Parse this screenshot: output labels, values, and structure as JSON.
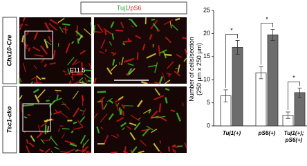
{
  "figure": {
    "header": {
      "green": "Tuj1",
      "red": "/pS6"
    },
    "rows": [
      "Chx10-Cre",
      "Tsc1-cko"
    ],
    "stage": "E11.5"
  },
  "chart_data": {
    "type": "bar",
    "ylabel": "Number of cells/section\n(250 µm x 250 µm)",
    "categories": [
      "Tuj1(+)",
      "pS6(+)",
      "Tuj1(+); pS6(+)"
    ],
    "series": [
      {
        "color": "#ffffff",
        "values": [
          6.5,
          11.5,
          2.3
        ],
        "errors": [
          1.3,
          1.3,
          0.7
        ]
      },
      {
        "color": "#6d6d6d",
        "values": [
          17,
          19.7,
          7.2
        ],
        "errors": [
          1.5,
          1.2,
          1.0
        ]
      }
    ],
    "annotations": [
      "*",
      "*",
      "*"
    ],
    "ylim": [
      0,
      25
    ],
    "yticks": [
      0,
      5,
      10,
      15,
      20,
      25
    ]
  }
}
